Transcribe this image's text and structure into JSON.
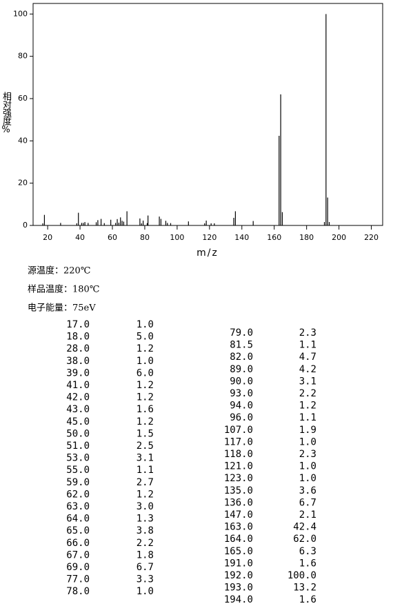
{
  "chart_data": {
    "type": "bar",
    "xlabel": "m/z",
    "ylabel": "相对强度%",
    "color": "#000000",
    "x": [
      17,
      18,
      28,
      38,
      39,
      41,
      42,
      43,
      45,
      50,
      51,
      53,
      55,
      59,
      62,
      63,
      64,
      65,
      66,
      67,
      69,
      77,
      78,
      79,
      81.5,
      82,
      89,
      90,
      93,
      94,
      96,
      107,
      117,
      118,
      121,
      123,
      135,
      136,
      147,
      163,
      164,
      165,
      191,
      192,
      193,
      194
    ],
    "values": [
      1.0,
      5.0,
      1.2,
      1.0,
      6.0,
      1.2,
      1.2,
      1.6,
      1.2,
      1.5,
      2.5,
      3.1,
      1.1,
      2.7,
      1.2,
      3.0,
      1.3,
      3.8,
      2.2,
      1.8,
      6.7,
      3.3,
      1.0,
      2.3,
      1.1,
      4.7,
      4.2,
      3.1,
      2.2,
      1.2,
      1.1,
      1.9,
      1.0,
      2.3,
      1.0,
      1.0,
      3.6,
      6.7,
      2.1,
      42.4,
      62.0,
      6.3,
      1.6,
      100.0,
      13.2,
      1.6
    ],
    "xlim": [
      11,
      227
    ],
    "xticks": [
      20,
      40,
      60,
      80,
      100,
      120,
      140,
      160,
      180,
      200,
      220
    ],
    "ylim": [
      0,
      105
    ],
    "yticks": [
      0,
      20,
      40,
      60,
      80,
      100
    ]
  },
  "conditions": [
    "源温度：220℃",
    "样品温度：180℃",
    "电子能量：75eV"
  ],
  "peak_table": {
    "left": [
      [
        "17.0",
        "1.0"
      ],
      [
        "18.0",
        "5.0"
      ],
      [
        "28.0",
        "1.2"
      ],
      [
        "38.0",
        "1.0"
      ],
      [
        "39.0",
        "6.0"
      ],
      [
        "41.0",
        "1.2"
      ],
      [
        "42.0",
        "1.2"
      ],
      [
        "43.0",
        "1.6"
      ],
      [
        "45.0",
        "1.2"
      ],
      [
        "50.0",
        "1.5"
      ],
      [
        "51.0",
        "2.5"
      ],
      [
        "53.0",
        "3.1"
      ],
      [
        "55.0",
        "1.1"
      ],
      [
        "59.0",
        "2.7"
      ],
      [
        "62.0",
        "1.2"
      ],
      [
        "63.0",
        "3.0"
      ],
      [
        "64.0",
        "1.3"
      ],
      [
        "65.0",
        "3.8"
      ],
      [
        "66.0",
        "2.2"
      ],
      [
        "67.0",
        "1.8"
      ],
      [
        "69.0",
        "6.7"
      ],
      [
        "77.0",
        "3.3"
      ],
      [
        "78.0",
        "1.0"
      ]
    ],
    "right": [
      [
        "79.0",
        "2.3"
      ],
      [
        "81.5",
        "1.1"
      ],
      [
        "82.0",
        "4.7"
      ],
      [
        "89.0",
        "4.2"
      ],
      [
        "90.0",
        "3.1"
      ],
      [
        "93.0",
        "2.2"
      ],
      [
        "94.0",
        "1.2"
      ],
      [
        "96.0",
        "1.1"
      ],
      [
        "107.0",
        "1.9"
      ],
      [
        "117.0",
        "1.0"
      ],
      [
        "118.0",
        "2.3"
      ],
      [
        "121.0",
        "1.0"
      ],
      [
        "123.0",
        "1.0"
      ],
      [
        "135.0",
        "3.6"
      ],
      [
        "136.0",
        "6.7"
      ],
      [
        "147.0",
        "2.1"
      ],
      [
        "163.0",
        "42.4"
      ],
      [
        "164.0",
        "62.0"
      ],
      [
        "165.0",
        "6.3"
      ],
      [
        "191.0",
        "1.6"
      ],
      [
        "192.0",
        "100.0"
      ],
      [
        "193.0",
        "13.2"
      ],
      [
        "194.0",
        "1.6"
      ]
    ]
  }
}
